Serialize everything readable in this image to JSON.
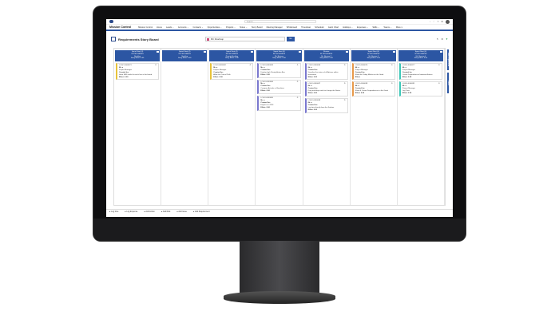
{
  "app": {
    "title": "Mission Control",
    "search_placeholder": "Search..."
  },
  "menu": [
    "Mission Control",
    "Home",
    "Leads ⌄",
    "Accounts ⌄",
    "Contacts ⌄",
    "Opportunities ⌄",
    "Projects ⌄",
    "Notes ⌄",
    "Story Board",
    "Meeting Manager",
    "Whiteboard",
    "Timesheet",
    "Scheduler",
    "Gantt Chart",
    "Holidays ⌄",
    "Expenses ⌄",
    "Skills ⌄",
    "Teams ⌄",
    "More ▾"
  ],
  "page": {
    "title": "Requirements Story Board",
    "filter": "MC Roadmap",
    "go_label": "Go"
  },
  "colors": {
    "primary": "#2c56a3",
    "yellow": "#e8c33a",
    "purple": "#7a78cf",
    "orange": "#e89a4a",
    "teal": "#3cc8b8"
  },
  "columns": [
    {
      "lines": [
        "Sprint Start (4)",
        "IN PROGRESS",
        "Backlog",
        "Story Effort: 0.00"
      ],
      "cards": [
        {
          "id": "LOGO-0000073",
          "color": "yellow",
          "lines": [
            "Mr. a",
            "Project Manager",
            "Created for:",
            "Have SMS outlet for each line in the board",
            "Effort: 0.00"
          ]
        }
      ]
    },
    {
      "lines": [
        "Sprint Start (4)",
        "IN PROGRESS",
        "Backlog",
        "Story Effort: 0.00"
      ],
      "cards": []
    },
    {
      "lines": [
        "Sprint Start (4)",
        "IN PROGRESS",
        "Priority Backlog",
        "Story Effort: 0.00"
      ],
      "cards": [
        {
          "id": "LOGO-0000062",
          "color": "yellow",
          "lines": [
            "Mr. a",
            "Project Manager",
            "Created for:",
            "Allow the Critical Path",
            "Effort: 0.00"
          ]
        }
      ]
    },
    {
      "lines": [
        "Sprint Start (4)",
        "IN PROGRESS",
        "Mr. Review",
        "Story Effort: 0.00"
      ],
      "cards": [
        {
          "id": "LOGO-0000063",
          "color": "purple",
          "lines": [
            "Mr. a",
            "Created for:",
            "Display high Priority Action Box",
            "Effort: 0.00"
          ]
        },
        {
          "id": "LOGO-0000064",
          "color": "purple",
          "lines": [
            "Mr. a",
            "Created for:",
            "Compare Actuals vs Baselines",
            "Effort: 0.00"
          ]
        },
        {
          "id": "LOGO-0000065",
          "color": "purple",
          "lines": [
            "Mr. a",
            "Created for:",
            "Export as a PDF",
            "Effort: 0.00"
          ]
        }
      ]
    },
    {
      "lines": [
        "Review",
        "IN PROGRESS",
        "Mr. Review 2",
        "Story Effort: 0.00"
      ],
      "cards": [
        {
          "id": "LOGO-0000066",
          "color": "purple",
          "lines": [
            "Mr. a",
            "Created for:",
            "Visualise the status of all Actions within timesheets",
            "Effort: 0.00"
          ]
        },
        {
          "id": "LOGO-0000067",
          "color": "purple",
          "lines": [
            "Mr. a",
            "Created for:",
            "Drag and drop cards to change the Status",
            "Effort: 0.00"
          ]
        },
        {
          "id": "LOGO-0000068",
          "color": "purple",
          "lines": [
            "Mr. a",
            "Created for:",
            "Log time directly from the Kanban",
            "Effort: 0.00"
          ]
        }
      ]
    },
    {
      "lines": [
        "Sprint Start (4)",
        "IN PROGRESS",
        "Mr. Review 3",
        "Story Effort: 0.00"
      ],
      "cards": [
        {
          "id": "LOGO-0000076",
          "color": "orange",
          "lines": [
            "Mr. a",
            "Project Manager",
            "Created for:",
            "Show the Today Marker on the Gantt",
            "Effort:"
          ]
        },
        {
          "id": "LOGO-0000069",
          "color": "orange",
          "lines": [
            "Mr. a",
            "Created for:",
            "Show & Create Dependencies in the Gantt",
            "Effort: 0.00"
          ]
        }
      ]
    },
    {
      "lines": [
        "Sprint Start (4)",
        "IN PROGRESS",
        "Mr. Review 4",
        "Story Effort: 0.00"
      ],
      "cards": [
        {
          "id": "LOGO-0000077",
          "color": "teal",
          "lines": [
            "Mr. a",
            "Project Manager",
            "Created for:",
            "Create Dependencies between Actions",
            "Effort: 0.00"
          ]
        },
        {
          "id": "LOGO-0000081",
          "color": "teal",
          "lines": [
            "Mr. a",
            "Project Manager",
            "Log Time",
            "Effort: 0.00"
          ]
        }
      ]
    }
  ],
  "sidetabs": [
    "Add Requirement",
    "Filters"
  ],
  "bottom": [
    "Log time",
    "Log Expense",
    "Add Action",
    "Add Risk",
    "Add Issue",
    "Add Requirement"
  ]
}
